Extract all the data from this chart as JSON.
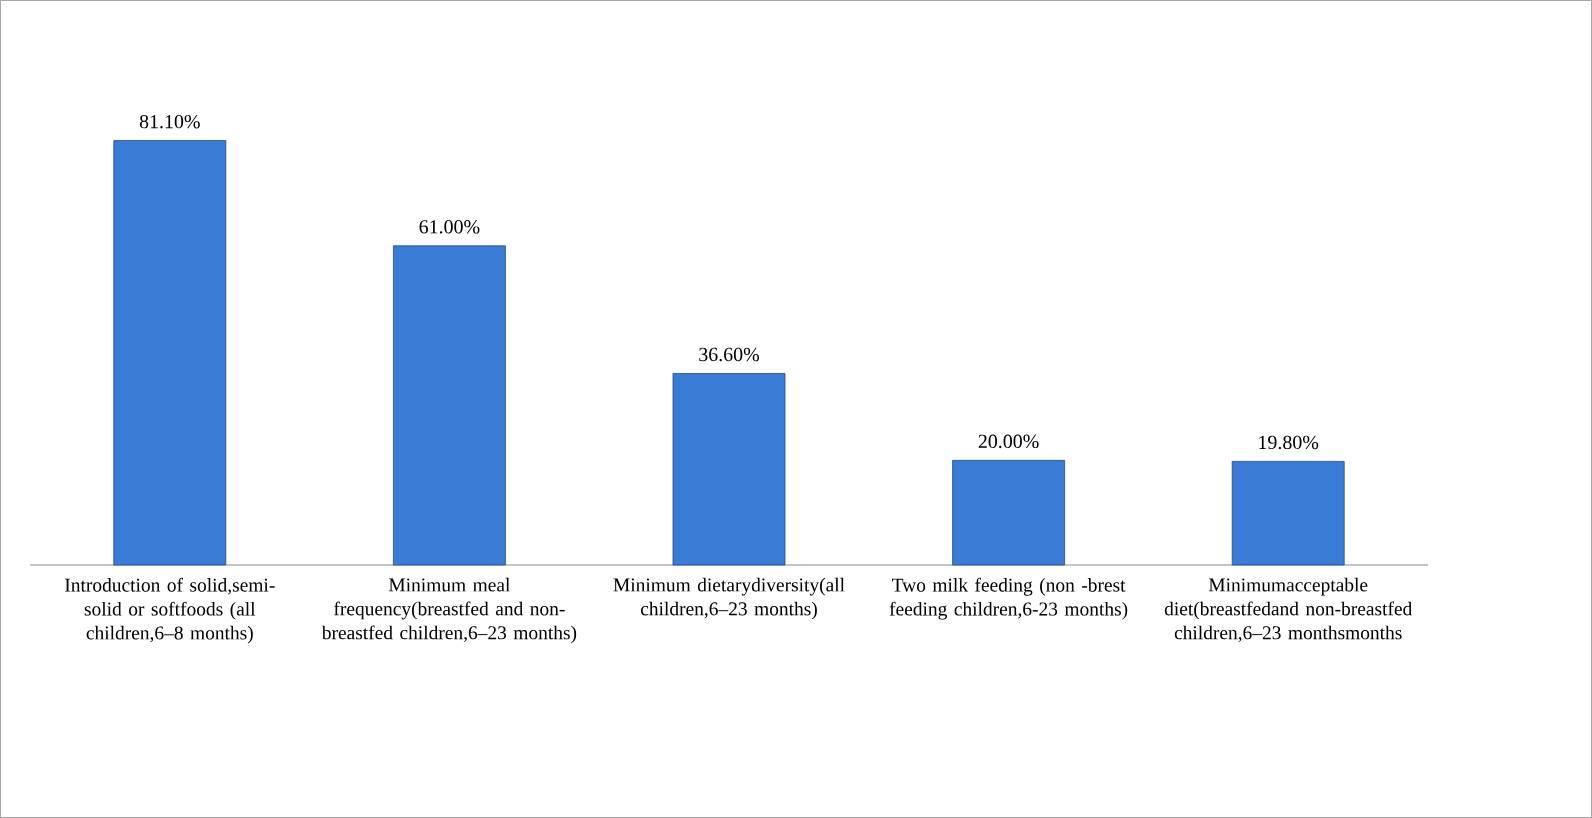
{
  "chart_data": {
    "type": "bar",
    "categories": [
      "Introduction of solid,semi-solid or softfoods (all children,6–8 months)",
      "Minimum meal frequency(breastfed and non-breastfed children,6–23 months)",
      "Minimum dietarydiversity(all children,6–23 months)",
      "Two milk feeding (non -brest feeding children,6-23 months)",
      "Minimumacceptable diet(breastfedand non-breastfed children,6–23 monthsmonths"
    ],
    "values": [
      81.1,
      61.0,
      36.6,
      20.0,
      19.8
    ],
    "value_labels": [
      "81.10%",
      "61.00%",
      "36.60%",
      "20.00%",
      "19.80%"
    ],
    "color": "#3a7bd5"
  }
}
